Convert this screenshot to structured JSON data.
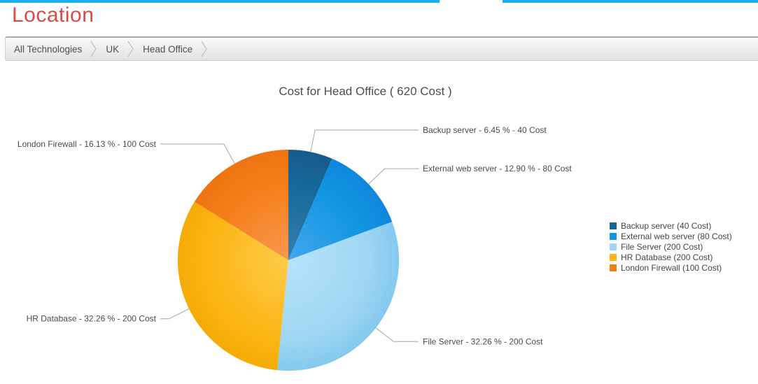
{
  "page": {
    "title": "Location",
    "title_color": "#dc4c47"
  },
  "top_bar": {
    "color": "#1ab0f0"
  },
  "breadcrumb": {
    "items": [
      {
        "label": "All Technologies"
      },
      {
        "label": "UK"
      },
      {
        "label": "Head Office"
      }
    ]
  },
  "chart_data": {
    "type": "pie",
    "title": "Cost for Head Office ( 620 Cost )",
    "total": 620,
    "unit": "Cost",
    "legend_position": "right",
    "start_angle_deg": 0,
    "slices": [
      {
        "name": "Backup server",
        "value": 40,
        "percent": 6.45,
        "color": "#15679a",
        "gradient": {
          "inner": "#367fae",
          "edge": "#175a89"
        },
        "callout": "Backup server - 6.45 % - 40 Cost",
        "legend": "Backup server (40 Cost)"
      },
      {
        "name": "External web server",
        "value": 80,
        "percent": 12.9,
        "color": "#1095e0",
        "gradient": {
          "inner": "#42a6ee",
          "edge": "#0f86dd"
        },
        "callout": "External web server - 12.90 % - 80 Cost",
        "legend": "External web server (80 Cost)"
      },
      {
        "name": "File Server",
        "value": 200,
        "percent": 32.26,
        "color": "#9fd6f2",
        "gradient": {
          "inner": "#b7e3fa",
          "edge": "#83c9ef"
        },
        "callout": "File Server - 32.26 % - 200 Cost",
        "legend": "File Server (200 Cost)"
      },
      {
        "name": "HR Database",
        "value": 200,
        "percent": 32.26,
        "color": "#fcb515",
        "gradient": {
          "inner": "#fdcb49",
          "edge": "#f4ab05"
        },
        "callout": "HR Database - 32.26 % - 200 Cost",
        "legend": "HR Database (200 Cost)"
      },
      {
        "name": "London Firewall",
        "value": 100,
        "percent": 16.13,
        "color": "#f57d18",
        "gradient": {
          "inner": "#f99851",
          "edge": "#ef7412"
        },
        "callout": "London Firewall - 16.13 % - 100 Cost",
        "legend": "London Firewall (100 Cost)"
      }
    ]
  }
}
